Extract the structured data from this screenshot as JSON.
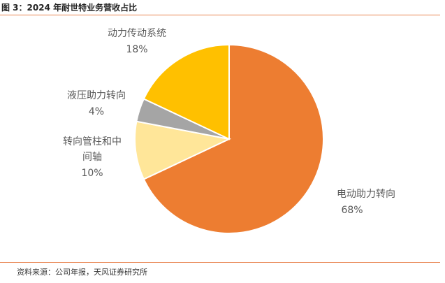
{
  "figure": {
    "title": "图 3：2024 年耐世特业务营收占比",
    "source": "资料来源：公司年报，天风证券研究所"
  },
  "chart_data": {
    "type": "pie",
    "title": "",
    "slices": [
      {
        "name": "电动助力转向",
        "value": 68,
        "label": "68%",
        "color": "#ED7D31"
      },
      {
        "name": "转向管柱和中间轴",
        "value": 10,
        "label": "10%",
        "color": "#FFE699"
      },
      {
        "name": "液压助力转向",
        "value": 4,
        "label": "4%",
        "color": "#A5A5A5"
      },
      {
        "name": "动力传动系统",
        "value": 18,
        "label": "18%",
        "color": "#FFC000"
      }
    ],
    "start_angle_deg": 0,
    "direction": "clockwise",
    "legend": "none"
  }
}
